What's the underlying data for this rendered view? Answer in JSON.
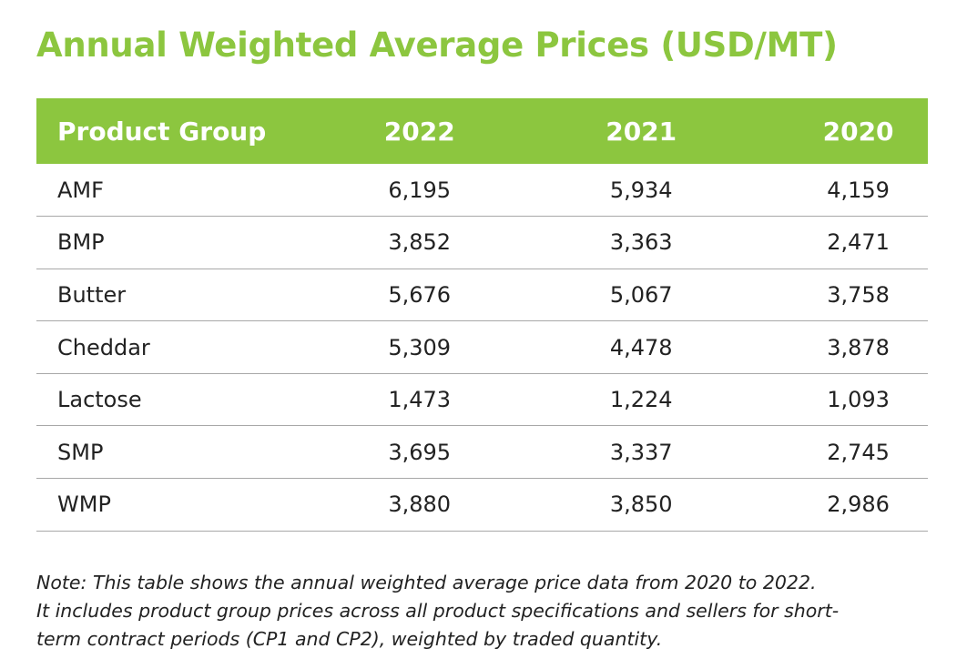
{
  "title": "Annual Weighted Average Prices (USD/MT)",
  "table": {
    "headers": [
      "Product Group",
      "2022",
      "2021",
      "2020"
    ],
    "rows": [
      {
        "product": "AMF",
        "y2022": "6,195",
        "y2021": "5,934",
        "y2020": "4,159"
      },
      {
        "product": "BMP",
        "y2022": "3,852",
        "y2021": "3,363",
        "y2020": "2,471"
      },
      {
        "product": "Butter",
        "y2022": "5,676",
        "y2021": "5,067",
        "y2020": "3,758"
      },
      {
        "product": "Cheddar",
        "y2022": "5,309",
        "y2021": "4,478",
        "y2020": "3,878"
      },
      {
        "product": "Lactose",
        "y2022": "1,473",
        "y2021": "1,224",
        "y2020": "1,093"
      },
      {
        "product": "SMP",
        "y2022": "3,695",
        "y2021": "3,337",
        "y2020": "2,745"
      },
      {
        "product": "WMP",
        "y2022": "3,880",
        "y2021": "3,850",
        "y2020": "2,986"
      }
    ]
  },
  "note": {
    "line1": "Note: This table shows the annual weighted average price data from 2020 to 2022.",
    "line2": "It includes product group prices across all product specifications and sellers for short-",
    "line3": "term contract periods (CP1 and CP2), weighted by traded quantity."
  },
  "colors": {
    "accent": "#8cc63f",
    "header_text": "#ffffff",
    "body_text": "#222222",
    "divider": "#a8a8a8"
  }
}
